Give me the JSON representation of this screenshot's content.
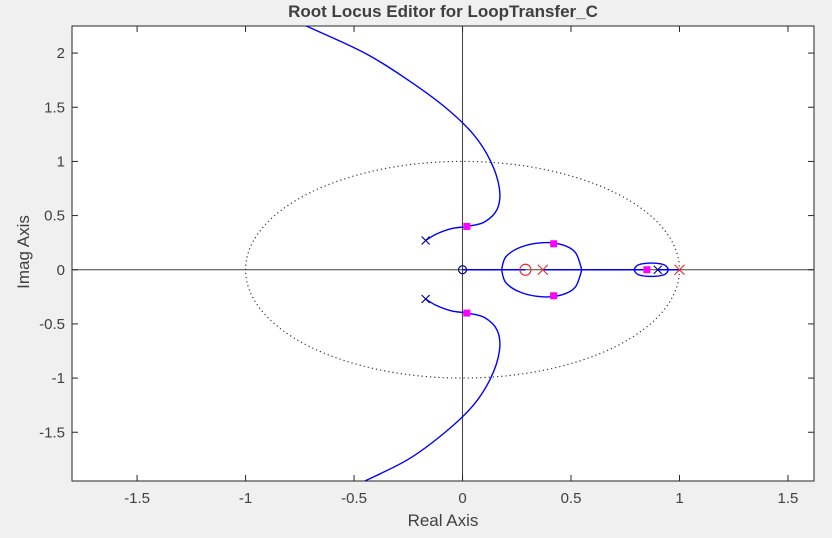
{
  "chart_data": {
    "type": "scatter",
    "title": "Root Locus Editor for LoopTransfer_C",
    "xlabel": "Real Axis",
    "ylabel": "Imag Axis",
    "xlim": [
      -1.8,
      1.62
    ],
    "ylim": [
      -1.95,
      2.25
    ],
    "xticks": [
      -1.5,
      -1,
      -0.5,
      0,
      0.5,
      1,
      1.5
    ],
    "xtick_labels": [
      "-1.5",
      "-1",
      "-0.5",
      "0",
      "0.5",
      "1",
      "1.5"
    ],
    "yticks": [
      2,
      1.5,
      1,
      0.5,
      0,
      -0.5,
      -1,
      -1.5
    ],
    "ytick_labels": [
      "2",
      "1.5",
      "1",
      "0.5",
      "0",
      "-0.5",
      "-1",
      "-1.5"
    ],
    "grid": false,
    "unit_circle": {
      "center": [
        0,
        0
      ],
      "radius": 1,
      "style": "dotted"
    },
    "locus_branches": [
      {
        "name": "upper-complex",
        "points": [
          [
            -0.17,
            0.27
          ],
          [
            -0.12,
            0.33
          ],
          [
            -0.05,
            0.38
          ],
          [
            0.02,
            0.4
          ],
          [
            0.1,
            0.44
          ],
          [
            0.16,
            0.56
          ],
          [
            0.17,
            0.75
          ],
          [
            0.13,
            1.0
          ],
          [
            0.05,
            1.25
          ],
          [
            -0.08,
            1.5
          ],
          [
            -0.25,
            1.75
          ],
          [
            -0.45,
            2.0
          ],
          [
            -0.72,
            2.25
          ]
        ]
      },
      {
        "name": "lower-complex",
        "points": [
          [
            -0.17,
            -0.27
          ],
          [
            -0.12,
            -0.33
          ],
          [
            -0.05,
            -0.38
          ],
          [
            0.02,
            -0.4
          ],
          [
            0.1,
            -0.44
          ],
          [
            0.16,
            -0.56
          ],
          [
            0.17,
            -0.75
          ],
          [
            0.13,
            -1.0
          ],
          [
            0.05,
            -1.25
          ],
          [
            -0.08,
            -1.5
          ],
          [
            -0.25,
            -1.75
          ],
          [
            -0.45,
            -1.95
          ]
        ]
      },
      {
        "name": "real-axis-segment",
        "points": [
          [
            0.0,
            0.0
          ],
          [
            0.29,
            0.0
          ]
        ]
      },
      {
        "name": "real-axis-segment-2",
        "points": [
          [
            0.37,
            0.0
          ],
          [
            0.85,
            0.0
          ]
        ]
      },
      {
        "name": "real-axis-segment-3",
        "points": [
          [
            0.9,
            0.0
          ],
          [
            1.0,
            0.0
          ]
        ]
      },
      {
        "name": "oval-upper",
        "points": [
          [
            0.18,
            0.0
          ],
          [
            0.2,
            0.12
          ],
          [
            0.27,
            0.21
          ],
          [
            0.37,
            0.25
          ],
          [
            0.46,
            0.23
          ],
          [
            0.52,
            0.16
          ],
          [
            0.55,
            0.0
          ]
        ]
      },
      {
        "name": "oval-lower",
        "points": [
          [
            0.18,
            0.0
          ],
          [
            0.2,
            -0.12
          ],
          [
            0.27,
            -0.21
          ],
          [
            0.37,
            -0.25
          ],
          [
            0.46,
            -0.23
          ],
          [
            0.52,
            -0.16
          ],
          [
            0.55,
            0.0
          ]
        ]
      },
      {
        "name": "small-oval-upper",
        "points": [
          [
            0.79,
            0.0
          ],
          [
            0.81,
            0.045
          ],
          [
            0.87,
            0.062
          ],
          [
            0.93,
            0.045
          ],
          [
            0.95,
            0.0
          ]
        ]
      },
      {
        "name": "small-oval-lower",
        "points": [
          [
            0.79,
            0.0
          ],
          [
            0.81,
            -0.045
          ],
          [
            0.87,
            -0.062
          ],
          [
            0.93,
            -0.045
          ],
          [
            0.95,
            0.0
          ]
        ]
      }
    ],
    "open_loop_poles": [
      [
        -0.17,
        0.27
      ],
      [
        -0.17,
        -0.27
      ],
      [
        0.9,
        0.0
      ]
    ],
    "open_loop_zeros": [
      [
        0.0,
        0.0
      ]
    ],
    "compensator_poles": [
      [
        0.37,
        0.0
      ],
      [
        1.0,
        0.0
      ]
    ],
    "compensator_zeros": [
      [
        0.29,
        0.0
      ]
    ],
    "closed_loop_poles": [
      [
        0.02,
        0.4
      ],
      [
        0.02,
        -0.4
      ],
      [
        0.42,
        0.24
      ],
      [
        0.42,
        -0.24
      ],
      [
        0.85,
        0.0
      ]
    ],
    "colors": {
      "locus": "#0000ff",
      "plant_marker": "#00008b",
      "compensator_marker": "#e8312f",
      "closed_loop_pole": "#ff00ff",
      "axis_line": "#404040",
      "plot_bg": "#ffffff",
      "figure_bg": "#f0f0f0"
    }
  }
}
